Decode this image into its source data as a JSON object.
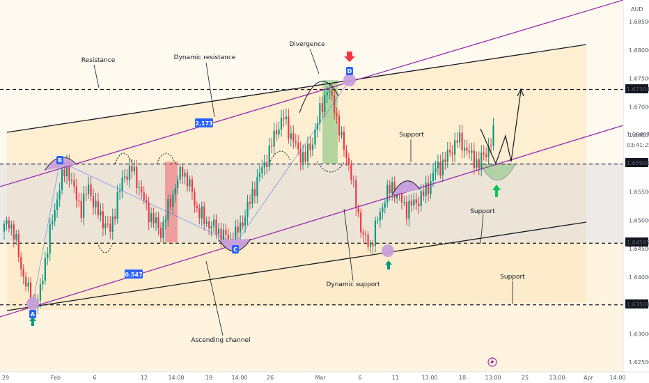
{
  "chart": {
    "currency": "AUD",
    "y_ticks": [
      "1.68500",
      "1.68000",
      "1.67500",
      "1.67000",
      "1.66500",
      "1.66000",
      "1.65500",
      "1.65000",
      "1.64500",
      "1.64000",
      "1.63500",
      "1.63000",
      "1.62500"
    ],
    "x_ticks": [
      "29",
      "Feb",
      "6",
      "12",
      "14:00",
      "19",
      "14:00",
      "26",
      "Mar",
      "6",
      "11",
      "13:00",
      "18",
      "13:00",
      "25",
      "13:00",
      "Apr",
      "14:00"
    ],
    "price_labels": [
      {
        "text": "1.67304",
        "color": "#131722"
      },
      {
        "text": "1.66497",
        "color": "#2962ff"
      },
      {
        "text": "03:41:25",
        "color": "#2962ff"
      },
      {
        "text": "1.65990",
        "color": "#131722"
      },
      {
        "text": "1.64595",
        "color": "#131722"
      },
      {
        "text": "1.63509",
        "color": "#131722"
      }
    ],
    "annotations": {
      "resistance": "Resistance",
      "dynamic_resistance": "Dynamic resistance",
      "divergence": "Divergence",
      "support_1": "Support",
      "support_2": "Support",
      "support_3": "Support",
      "dynamic_support": "Dynamic support",
      "ascending_channel": "Ascending channel"
    },
    "point_labels": [
      "A",
      "B",
      "C",
      "D"
    ],
    "ratios": [
      "2.173",
      "0.547"
    ],
    "colors": {
      "bull": "#089981",
      "bear": "#f23645",
      "purple_line": "#9c27b0",
      "channel_fill": "#fdebc8",
      "gray_zone": "#d8d8de"
    }
  },
  "chart_data": {
    "type": "candlestick",
    "title": "",
    "currency": "AUD",
    "x_range": [
      "Jan 29",
      "Apr 1"
    ],
    "ylim": [
      1.625,
      1.687
    ],
    "horizontal_levels": [
      1.67304,
      1.6599,
      1.64595,
      1.63509
    ],
    "last_price": 1.66497,
    "ohlc_swings": [
      {
        "date": "Jan 29",
        "price": 1.6352,
        "label": "A"
      },
      {
        "date": "Feb 1",
        "price": 1.6598,
        "label": "B"
      },
      {
        "date": "Feb 22",
        "price": 1.6465,
        "label": "C"
      },
      {
        "date": "Mar 1",
        "price": 1.6732,
        "label": "D"
      },
      {
        "date": "Mar 8",
        "price": 1.6455
      },
      {
        "date": "Mar 18",
        "price": 1.6642
      },
      {
        "date": "Mar 21",
        "price": 1.66
      }
    ],
    "ratios": [
      2.173,
      0.547
    ],
    "series": [
      {
        "values": [
          1.648,
          1.65,
          1.646,
          1.64,
          1.636,
          1.6352,
          1.643,
          1.65,
          1.656,
          1.6598,
          1.655,
          1.652,
          1.656,
          1.652,
          1.65,
          1.648,
          1.654,
          1.658,
          1.659,
          1.656,
          1.652,
          1.65,
          1.648,
          1.652,
          1.656,
          1.659,
          1.656,
          1.652,
          1.65,
          1.649,
          1.648,
          1.647,
          1.6465,
          1.649,
          1.652,
          1.656,
          1.659,
          1.662,
          1.666,
          1.668,
          1.665,
          1.662,
          1.661,
          1.664,
          1.669,
          1.6732,
          1.67,
          1.664,
          1.66,
          1.653,
          1.647,
          1.6455,
          1.65,
          1.654,
          1.656,
          1.654,
          1.652,
          1.653,
          1.654,
          1.656,
          1.659,
          1.66,
          1.662,
          1.6642,
          1.663,
          1.661,
          1.66,
          1.662,
          1.665
        ]
      }
    ]
  }
}
